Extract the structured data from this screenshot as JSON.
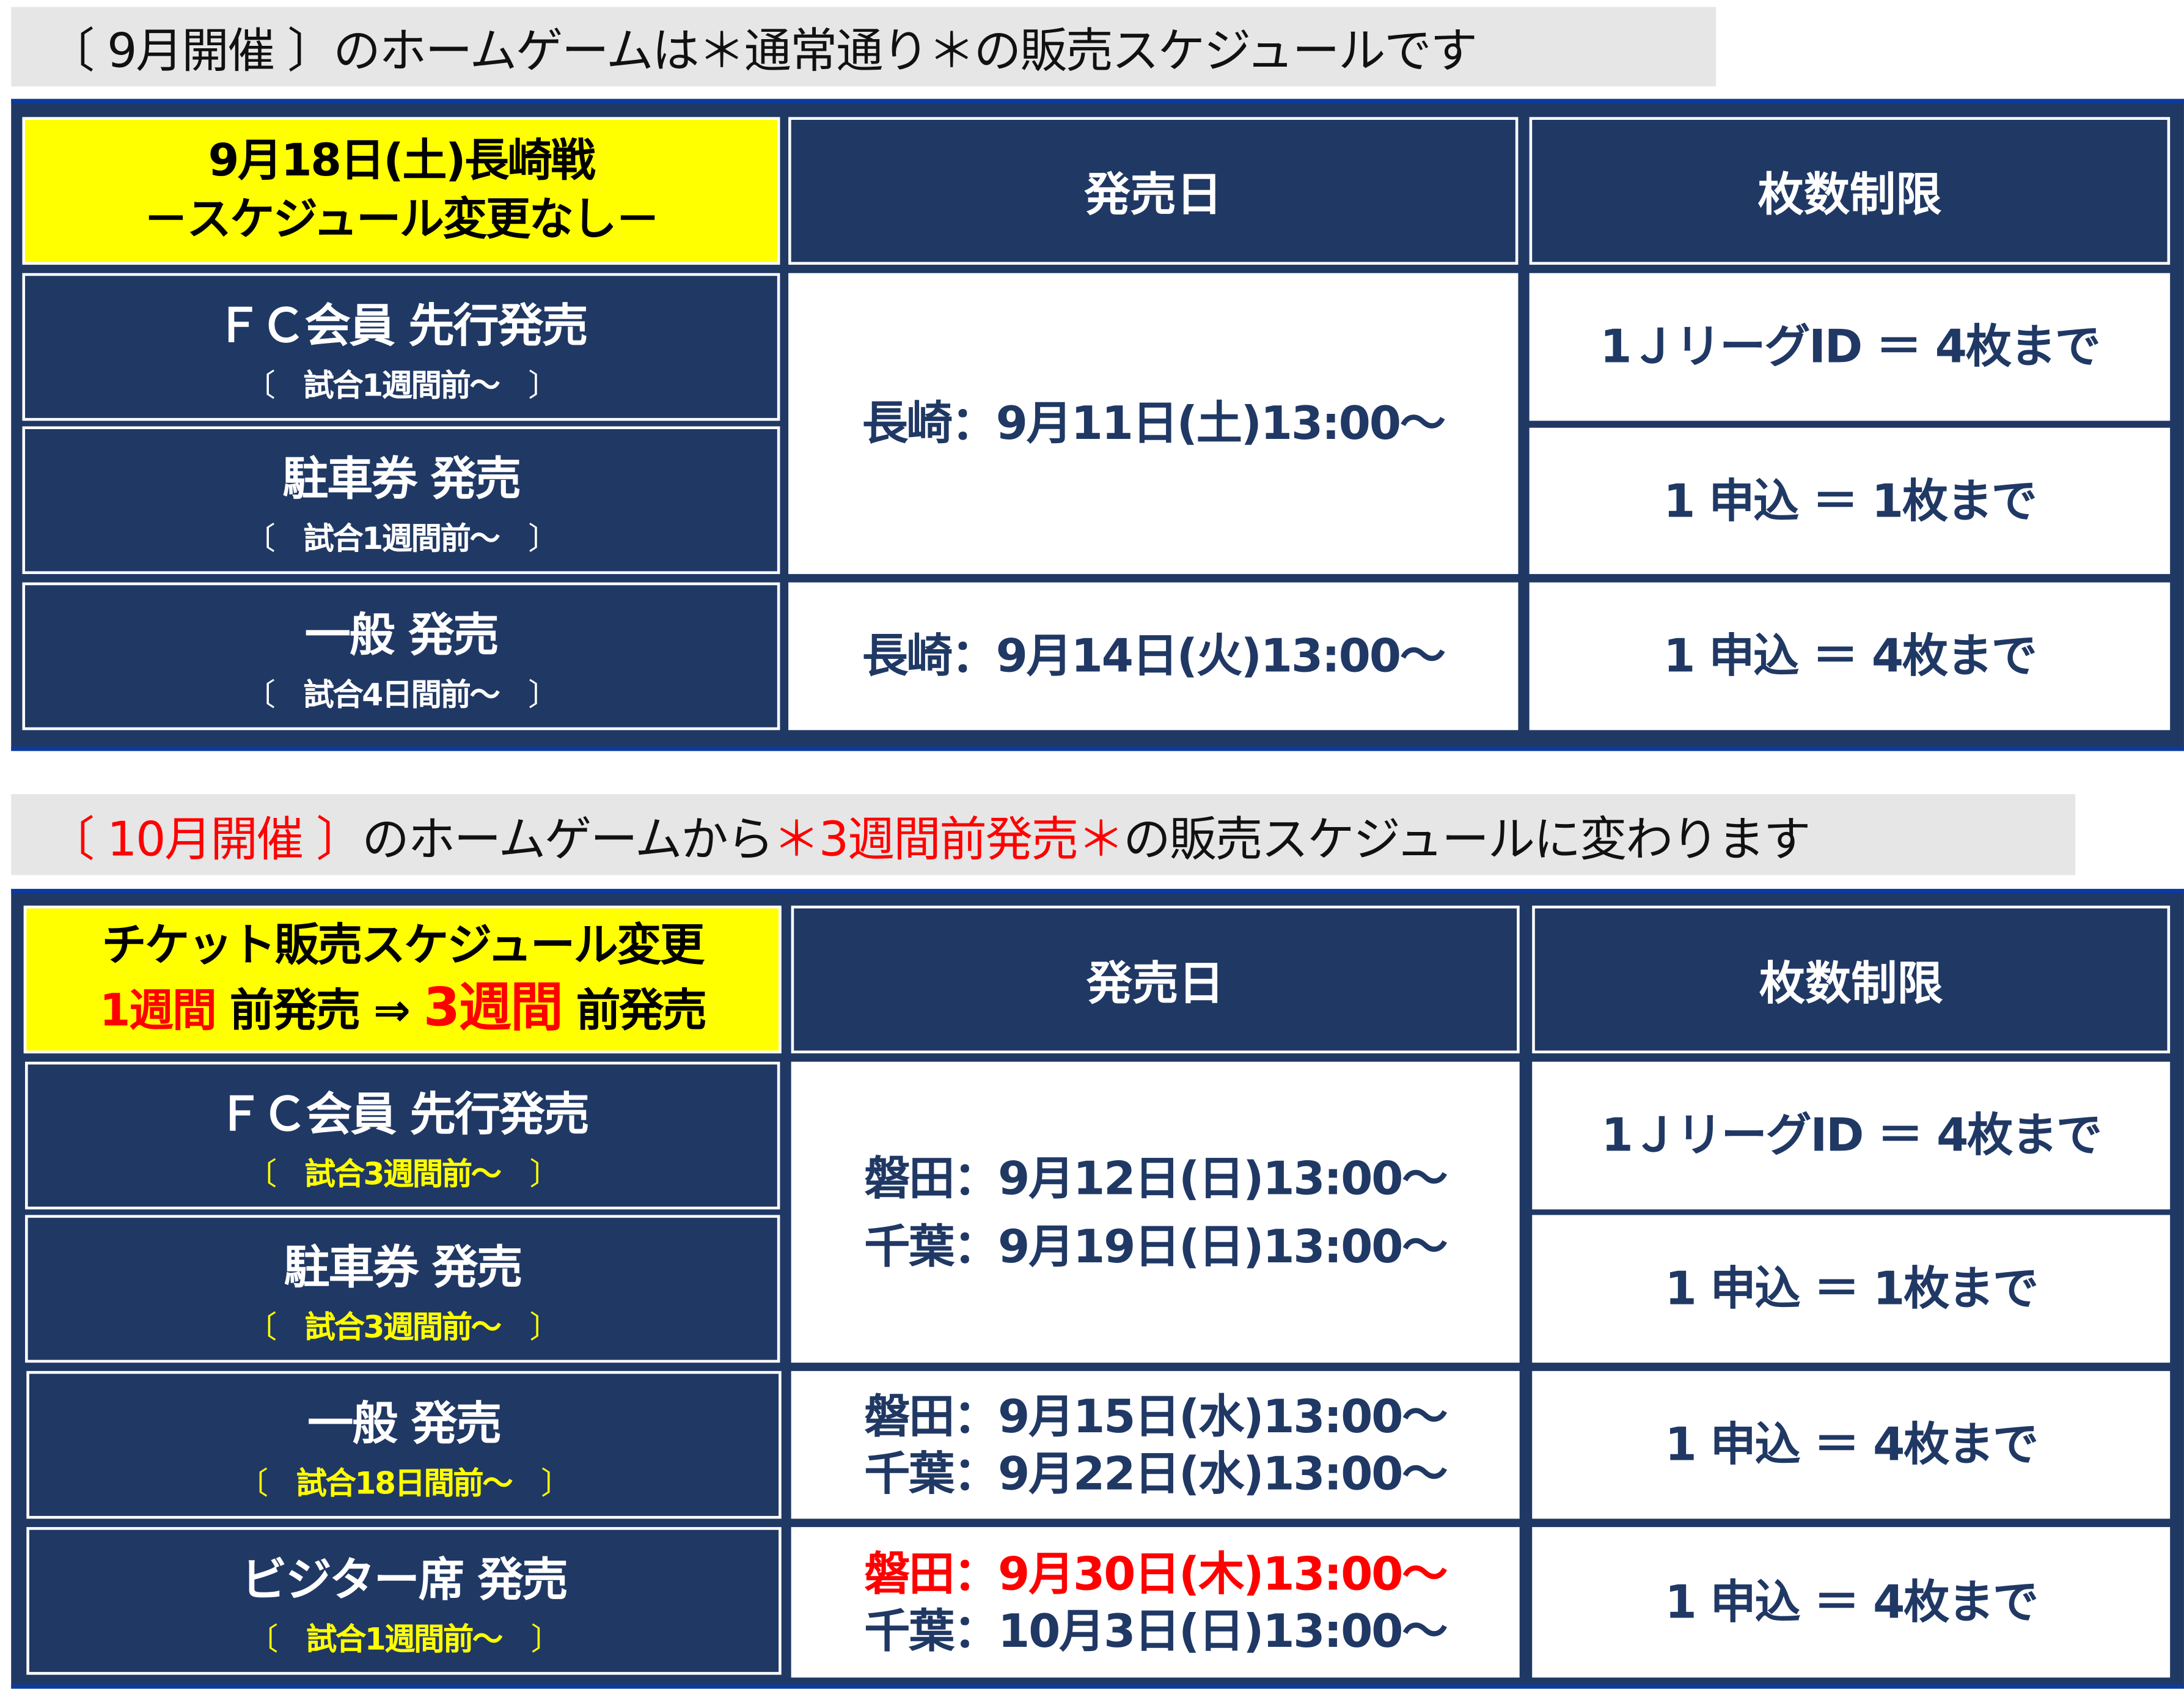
{
  "colors": {
    "navy": "#203864",
    "yellow": "#ffff00",
    "red": "#ff0000",
    "banner_bg": "#e6e6e6"
  },
  "section1": {
    "banner": {
      "prefix": "〔 9月開催 〕のホームゲームは ",
      "emphasis": "＊通常通り＊",
      "suffix": " の販売スケジュールです"
    },
    "title_line1": "9月18日(土)長崎戦",
    "title_line2": "－スケジュール変更なし－",
    "col_date": "発売日",
    "col_limit": "枚数制限",
    "rows": [
      {
        "name": "ＦＣ会員 先行発売",
        "sub": "試合1週間前～"
      },
      {
        "name": "駐車券 発売",
        "sub": "試合1週間前～"
      },
      {
        "name": "一般 発売",
        "sub": "試合4日間前～"
      }
    ],
    "date_fc_parking": "長崎：9月11日(土)13:00～",
    "date_general": "長崎：9月14日(火)13:00～",
    "limits": [
      "1ＪリーグID ＝ 4枚まで",
      "1 申込 ＝ 1枚まで",
      "1 申込 ＝ 4枚まで"
    ]
  },
  "section2": {
    "banner": {
      "prefix": "〔 10月開催 〕",
      "middle": "のホームゲームから ",
      "emphasis": "＊3週間前発売＊",
      "suffix": " の販売スケジュールに変わります"
    },
    "title_line1": "チケット販売スケジュール変更",
    "title_line2": {
      "a": "1週間",
      "b": " 前発売 ⇒ ",
      "c": "3週間",
      "d": " 前発売"
    },
    "col_date": "発売日",
    "col_limit": "枚数制限",
    "rows": [
      {
        "name": "ＦＣ会員 先行発売",
        "sub": "試合3週間前～"
      },
      {
        "name": "駐車券 発売",
        "sub": "試合3週間前～"
      },
      {
        "name": "一般 発売",
        "sub": "試合18日間前～"
      },
      {
        "name": "ビジター席 発売",
        "sub": "試合1週間前～"
      }
    ],
    "dates_fc_parking": [
      "磐田：9月12日(日)13:00～",
      "千葉：9月19日(日)13:00～"
    ],
    "dates_general": [
      "磐田：9月15日(水)13:00～",
      "千葉：9月22日(水)13:00～"
    ],
    "dates_visitor": [
      "磐田：9月30日(木)13:00～",
      "千葉：10月3日(日)13:00～"
    ],
    "limits": [
      "1ＪリーグID ＝ 4枚まで",
      "1 申込 ＝ 1枚まで",
      "1 申込 ＝ 4枚まで",
      "1 申込 ＝ 4枚まで"
    ]
  },
  "bracket_open": "〔",
  "bracket_close": "〕"
}
